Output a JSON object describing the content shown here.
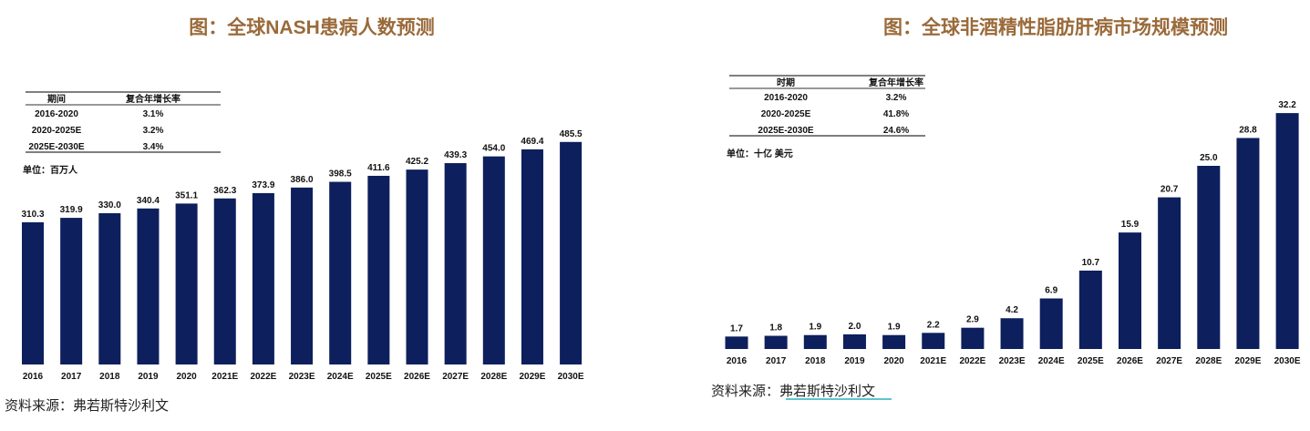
{
  "colors": {
    "bar": "#0d1f5c",
    "title": "#9a6a3a",
    "source_underline": "#2bb0c0"
  },
  "chart_data": [
    {
      "type": "bar",
      "title": "图：全球NASH患病人数预测",
      "unit": "单位：百万人",
      "categories": [
        "2016",
        "2017",
        "2018",
        "2019",
        "2020",
        "2021E",
        "2022E",
        "2023E",
        "2024E",
        "2025E",
        "2026E",
        "2027E",
        "2028E",
        "2029E",
        "2030E"
      ],
      "values": [
        310.3,
        319.9,
        330.0,
        340.4,
        351.1,
        362.3,
        373.9,
        386.0,
        398.5,
        411.6,
        425.2,
        439.3,
        454.0,
        469.4,
        485.5
      ],
      "table": {
        "headers": [
          "期间",
          "复合年增长率"
        ],
        "rows": [
          [
            "2016-2020",
            "3.1%"
          ],
          [
            "2020-2025E",
            "3.2%"
          ],
          [
            "2025E-2030E",
            "3.4%"
          ]
        ]
      },
      "source": "资料来源：弗若斯特沙利文"
    },
    {
      "type": "bar",
      "title": "图：全球非酒精性脂肪肝病市场规模预测",
      "unit": "单位：十亿 美元",
      "categories": [
        "2016",
        "2017",
        "2018",
        "2019",
        "2020",
        "2021E",
        "2022E",
        "2023E",
        "2024E",
        "2025E",
        "2026E",
        "2027E",
        "2028E",
        "2029E",
        "2030E"
      ],
      "values": [
        1.7,
        1.8,
        1.9,
        2.0,
        1.9,
        2.2,
        2.9,
        4.2,
        6.9,
        10.7,
        15.9,
        20.7,
        25.0,
        28.8,
        32.2
      ],
      "table": {
        "headers": [
          "时期",
          "复合年增长率"
        ],
        "rows": [
          [
            "2016-2020",
            "3.2%"
          ],
          [
            "2020-2025E",
            "41.8%"
          ],
          [
            "2025E-2030E",
            "24.6%"
          ]
        ]
      },
      "source_prefix": "资料来源：",
      "source_name": "弗若斯特沙利文"
    }
  ]
}
